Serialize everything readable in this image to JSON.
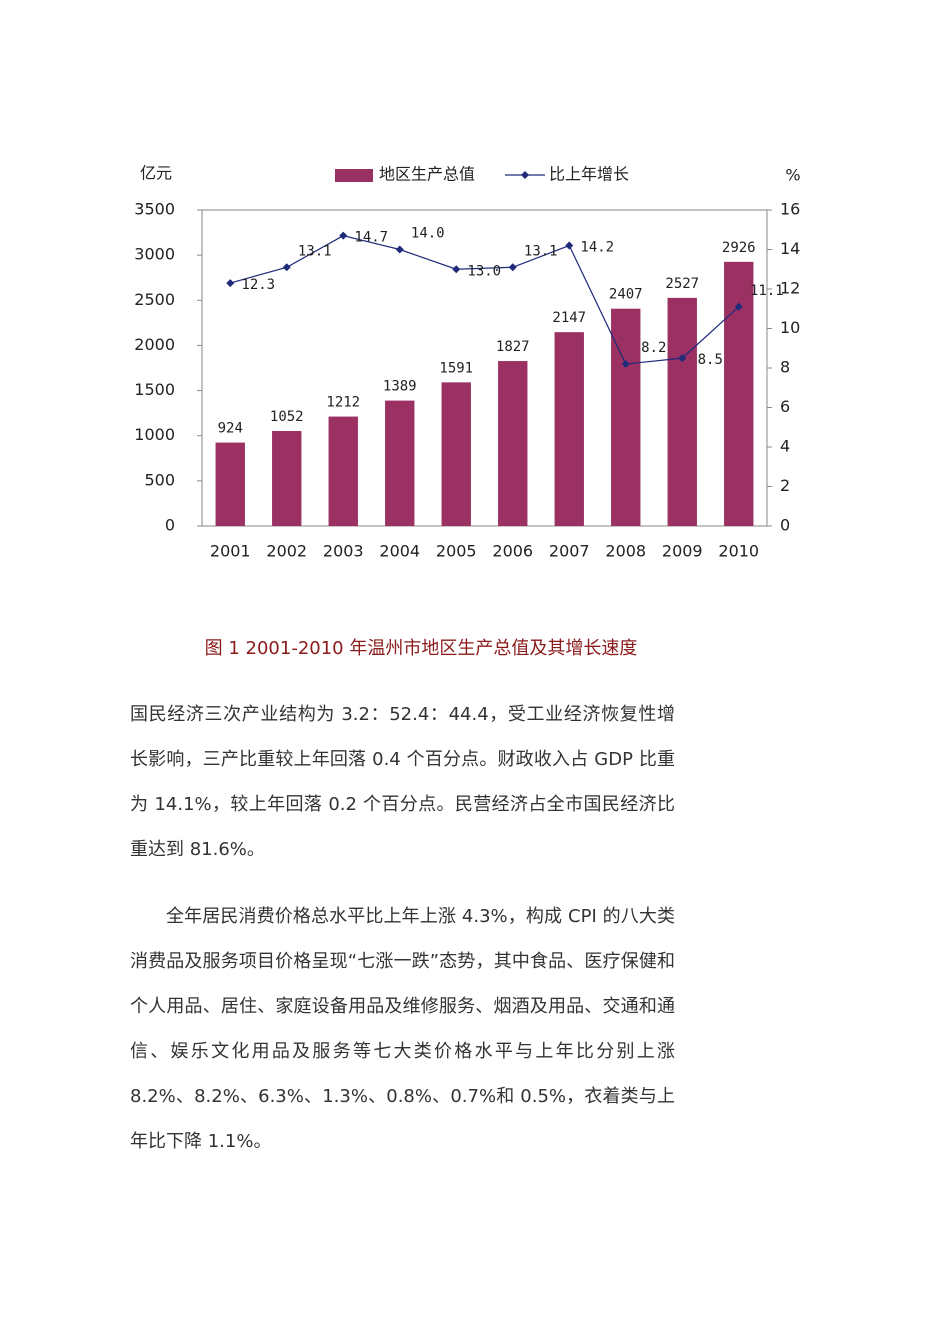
{
  "chart_data": {
    "type": "bar_line",
    "y_label": "亿元",
    "y2_label": "%",
    "categories": [
      "2001",
      "2002",
      "2003",
      "2004",
      "2005",
      "2006",
      "2007",
      "2008",
      "2009",
      "2010"
    ],
    "series": [
      {
        "name": "地区生产总值",
        "type": "bar",
        "color": "#9b3163",
        "values": [
          924,
          1052,
          1212,
          1389,
          1591,
          1827,
          2147,
          2407,
          2527,
          2926
        ]
      },
      {
        "name": "比上年增长",
        "type": "line",
        "axis": "y2",
        "color": "#1f2a7a",
        "values": [
          12.3,
          13.1,
          14.7,
          14.0,
          13.0,
          13.1,
          14.2,
          8.2,
          8.5,
          11.1
        ],
        "value_labels": [
          "12.3",
          "13.1",
          "14.7",
          "14.0",
          "13.0",
          "13.1",
          "14.2",
          "8.2",
          "8.5",
          "11.1"
        ]
      }
    ],
    "ylim": [
      0,
      3500
    ],
    "yticks": [
      0,
      500,
      1000,
      1500,
      2000,
      2500,
      3000,
      3500
    ],
    "y2lim": [
      0,
      16
    ],
    "y2ticks": [
      0,
      2,
      4,
      6,
      8,
      10,
      12,
      14,
      16
    ],
    "legend": "top",
    "grid": false
  },
  "caption": "图 1  2001-2010 年温州市地区生产总值及其增长速度",
  "paragraphs": [
    "国民经济三次产业结构为 3.2：52.4：44.4，受工业经济恢复性增长影响，三产比重较上年回落 0.4 个百分点。财政收入占 GDP 比重为 14.1%，较上年回落 0.2 个百分点。民营经济占全市国民经济比重达到 81.6%。",
    "全年居民消费价格总水平比上年上涨 4.3%，构成 CPI 的八大类消费品及服务项目价格呈现“七涨一跌”态势，其中食品、医疗保健和个人用品、居住、家庭设备用品及维修服务、烟酒及用品、交通和通信、娱乐文化用品及服务等七大类价格水平与上年比分别上涨 8.2%、8.2%、6.3%、1.3%、0.8%、0.7%和 0.5%，衣着类与上年比下降 1.1%。"
  ]
}
